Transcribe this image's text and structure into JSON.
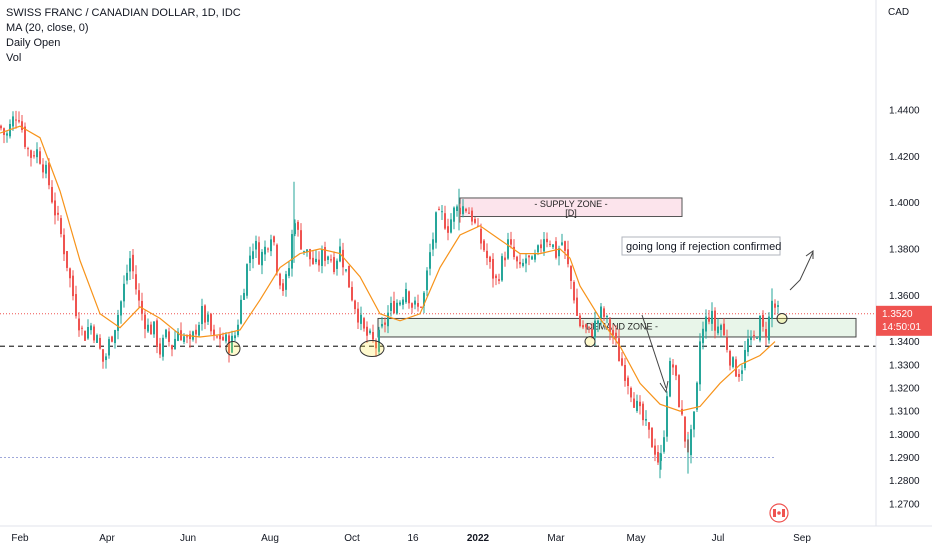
{
  "legend": {
    "title": "SWISS FRANC / CANADIAN DOLLAR, 1D, IDC",
    "ma": "MA (20, close, 0)",
    "daily_open": "Daily Open",
    "vol": "Vol"
  },
  "currency_label": "CAD",
  "last_price": "1.3520",
  "countdown": "14:50:01",
  "supply_zone": {
    "title": "- SUPPLY ZONE -",
    "tag": "[D]"
  },
  "demand_zone": {
    "title": "DEMAND ZONE -"
  },
  "annotation": "going long if rejection confirmed",
  "colors": {
    "up": "#26a69a",
    "down": "#ef5350",
    "ma": "#f7931a",
    "supply_fill": "#fce4ec",
    "demand_fill": "#e8f5e9",
    "price_line": "#ef5350"
  },
  "chart_data": {
    "type": "candlestick",
    "symbol": "CHFCAD",
    "interval": "1D",
    "y_ticks": [
      1.27,
      1.28,
      1.29,
      1.3,
      1.31,
      1.32,
      1.33,
      1.34,
      1.36,
      1.38,
      1.4,
      1.42,
      1.44
    ],
    "y_tick_labels": [
      "1.2700",
      "1.2800",
      "1.2900",
      "1.3000",
      "1.3100",
      "1.3200",
      "1.3300",
      "1.3400",
      "1.3600",
      "1.3800",
      "1.4000",
      "1.4200",
      "1.4400"
    ],
    "ylim": [
      1.263,
      1.484
    ],
    "x_labels": [
      "Feb",
      "Apr",
      "Jun",
      "Aug",
      "Oct",
      "16",
      "2022",
      "Mar",
      "May",
      "Jul",
      "Sep"
    ],
    "bold_x_label": "2022",
    "supply_zone": [
      1.394,
      1.402
    ],
    "demand_zone": [
      1.342,
      1.35
    ],
    "support_level": 1.338,
    "low_level": 1.29,
    "current_price": 1.352,
    "series": [
      {
        "name": "MA (20, close, 0)",
        "kind": "ma"
      }
    ],
    "close_path": [
      [
        0,
        1.433
      ],
      [
        6,
        1.428
      ],
      [
        12,
        1.435
      ],
      [
        18,
        1.44
      ],
      [
        24,
        1.428
      ],
      [
        30,
        1.42
      ],
      [
        36,
        1.423
      ],
      [
        42,
        1.418
      ],
      [
        48,
        1.41
      ],
      [
        54,
        1.398
      ],
      [
        60,
        1.388
      ],
      [
        66,
        1.376
      ],
      [
        72,
        1.362
      ],
      [
        78,
        1.35
      ],
      [
        84,
        1.342
      ],
      [
        90,
        1.348
      ],
      [
        96,
        1.342
      ],
      [
        100,
        1.336
      ],
      [
        104,
        1.33
      ],
      [
        108,
        1.338
      ],
      [
        114,
        1.346
      ],
      [
        120,
        1.355
      ],
      [
        126,
        1.368
      ],
      [
        130,
        1.376
      ],
      [
        134,
        1.368
      ],
      [
        138,
        1.358
      ],
      [
        142,
        1.352
      ],
      [
        148,
        1.346
      ],
      [
        154,
        1.345
      ],
      [
        160,
        1.336
      ],
      [
        166,
        1.342
      ],
      [
        172,
        1.338
      ],
      [
        178,
        1.345
      ],
      [
        184,
        1.342
      ],
      [
        190,
        1.338
      ],
      [
        196,
        1.346
      ],
      [
        202,
        1.352
      ],
      [
        208,
        1.348
      ],
      [
        214,
        1.34
      ],
      [
        220,
        1.342
      ],
      [
        226,
        1.34
      ],
      [
        230,
        1.338
      ],
      [
        236,
        1.344
      ],
      [
        242,
        1.36
      ],
      [
        248,
        1.375
      ],
      [
        254,
        1.383
      ],
      [
        260,
        1.376
      ],
      [
        266,
        1.381
      ],
      [
        272,
        1.389
      ],
      [
        278,
        1.37
      ],
      [
        284,
        1.362
      ],
      [
        290,
        1.374
      ],
      [
        294,
        1.397
      ],
      [
        298,
        1.386
      ],
      [
        304,
        1.38
      ],
      [
        310,
        1.376
      ],
      [
        316,
        1.372
      ],
      [
        322,
        1.377
      ],
      [
        328,
        1.378
      ],
      [
        334,
        1.374
      ],
      [
        340,
        1.38
      ],
      [
        346,
        1.37
      ],
      [
        352,
        1.36
      ],
      [
        358,
        1.352
      ],
      [
        364,
        1.344
      ],
      [
        370,
        1.341
      ],
      [
        376,
        1.338
      ],
      [
        382,
        1.345
      ],
      [
        388,
        1.352
      ],
      [
        394,
        1.356
      ],
      [
        400,
        1.358
      ],
      [
        406,
        1.364
      ],
      [
        412,
        1.356
      ],
      [
        418,
        1.354
      ],
      [
        424,
        1.36
      ],
      [
        430,
        1.378
      ],
      [
        436,
        1.392
      ],
      [
        442,
        1.394
      ],
      [
        448,
        1.39
      ],
      [
        454,
        1.396
      ],
      [
        460,
        1.398
      ],
      [
        466,
        1.398
      ],
      [
        472,
        1.394
      ],
      [
        478,
        1.386
      ],
      [
        484,
        1.38
      ],
      [
        490,
        1.372
      ],
      [
        496,
        1.366
      ],
      [
        502,
        1.374
      ],
      [
        508,
        1.382
      ],
      [
        514,
        1.376
      ],
      [
        520,
        1.37
      ],
      [
        526,
        1.376
      ],
      [
        532,
        1.373
      ],
      [
        538,
        1.378
      ],
      [
        544,
        1.386
      ],
      [
        550,
        1.384
      ],
      [
        556,
        1.378
      ],
      [
        562,
        1.383
      ],
      [
        568,
        1.372
      ],
      [
        574,
        1.36
      ],
      [
        578,
        1.348
      ],
      [
        584,
        1.346
      ],
      [
        590,
        1.343
      ],
      [
        596,
        1.348
      ],
      [
        602,
        1.353
      ],
      [
        608,
        1.347
      ],
      [
        614,
        1.342
      ],
      [
        620,
        1.332
      ],
      [
        626,
        1.326
      ],
      [
        632,
        1.318
      ],
      [
        638,
        1.31
      ],
      [
        644,
        1.305
      ],
      [
        650,
        1.298
      ],
      [
        656,
        1.293
      ],
      [
        660,
        1.285
      ],
      [
        664,
        1.302
      ],
      [
        668,
        1.325
      ],
      [
        672,
        1.332
      ],
      [
        676,
        1.322
      ],
      [
        680,
        1.312
      ],
      [
        684,
        1.3
      ],
      [
        688,
        1.294
      ],
      [
        692,
        1.3
      ],
      [
        696,
        1.312
      ],
      [
        700,
        1.34
      ],
      [
        704,
        1.346
      ],
      [
        708,
        1.352
      ],
      [
        712,
        1.35
      ],
      [
        716,
        1.344
      ],
      [
        720,
        1.349
      ],
      [
        724,
        1.342
      ],
      [
        728,
        1.337
      ],
      [
        732,
        1.33
      ],
      [
        736,
        1.328
      ],
      [
        740,
        1.327
      ],
      [
        744,
        1.333
      ],
      [
        748,
        1.34
      ],
      [
        752,
        1.338
      ],
      [
        756,
        1.344
      ],
      [
        760,
        1.348
      ],
      [
        764,
        1.343
      ],
      [
        768,
        1.347
      ],
      [
        772,
        1.357
      ],
      [
        776,
        1.354
      ],
      [
        778,
        1.352
      ]
    ],
    "ma_path": [
      [
        0,
        1.43
      ],
      [
        20,
        1.433
      ],
      [
        40,
        1.428
      ],
      [
        60,
        1.405
      ],
      [
        80,
        1.375
      ],
      [
        100,
        1.352
      ],
      [
        120,
        1.346
      ],
      [
        140,
        1.355
      ],
      [
        160,
        1.35
      ],
      [
        180,
        1.343
      ],
      [
        200,
        1.342
      ],
      [
        220,
        1.343
      ],
      [
        240,
        1.345
      ],
      [
        260,
        1.358
      ],
      [
        280,
        1.372
      ],
      [
        300,
        1.378
      ],
      [
        320,
        1.38
      ],
      [
        340,
        1.378
      ],
      [
        360,
        1.368
      ],
      [
        380,
        1.352
      ],
      [
        400,
        1.349
      ],
      [
        420,
        1.352
      ],
      [
        440,
        1.372
      ],
      [
        460,
        1.386
      ],
      [
        480,
        1.39
      ],
      [
        500,
        1.384
      ],
      [
        520,
        1.378
      ],
      [
        540,
        1.378
      ],
      [
        560,
        1.38
      ],
      [
        570,
        1.376
      ],
      [
        580,
        1.364
      ],
      [
        600,
        1.35
      ],
      [
        620,
        1.338
      ],
      [
        640,
        1.322
      ],
      [
        660,
        1.313
      ],
      [
        680,
        1.31
      ],
      [
        700,
        1.312
      ],
      [
        720,
        1.322
      ],
      [
        740,
        1.33
      ],
      [
        760,
        1.334
      ],
      [
        775,
        1.34
      ]
    ]
  }
}
